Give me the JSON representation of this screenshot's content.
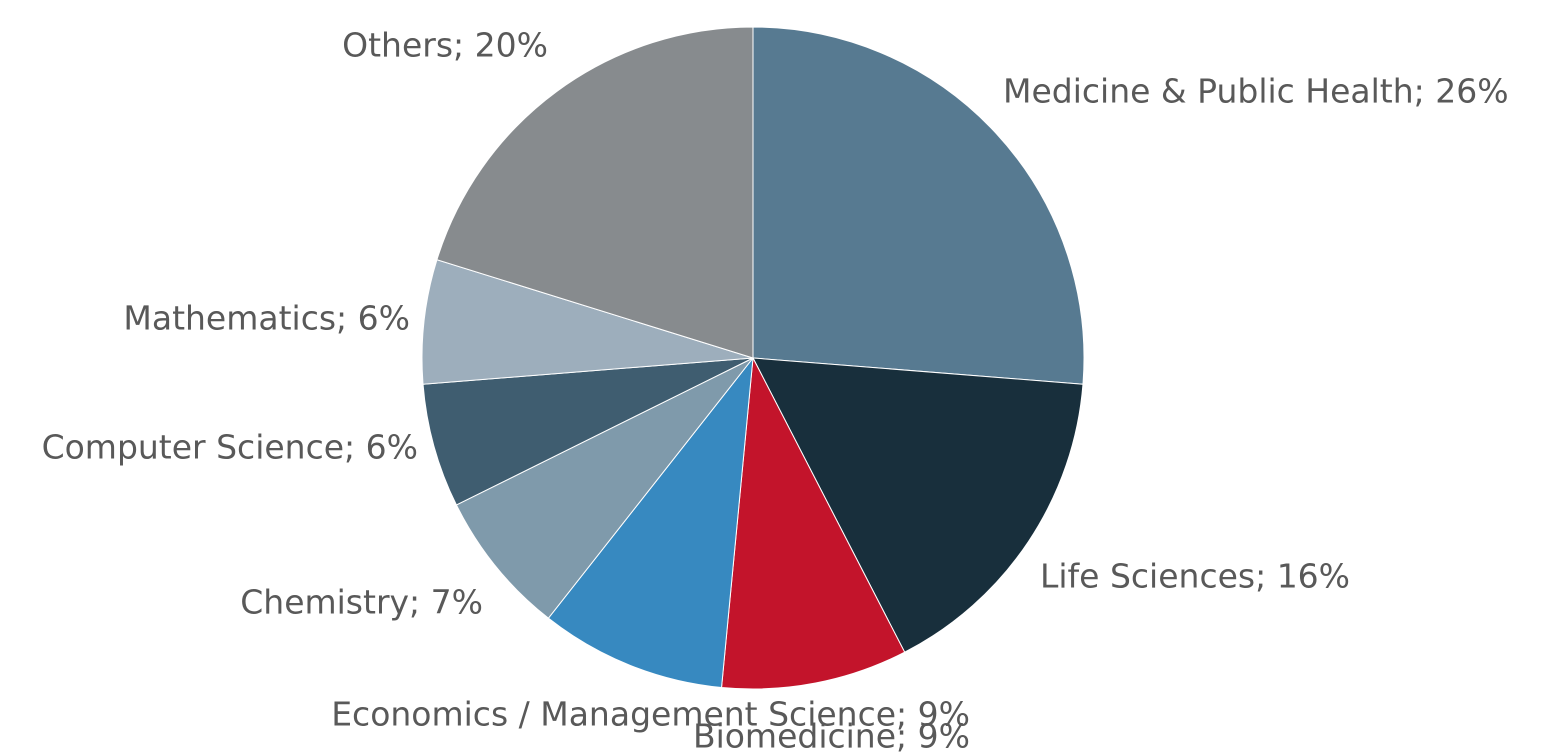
{
  "chart_data": {
    "type": "pie",
    "values": [
      26,
      16,
      9,
      9,
      7,
      6,
      6,
      20
    ],
    "value_labels": [
      "Medicine & Public Health; 26%",
      "Life Sciences; 16%",
      "Biomedicine; 9%",
      "Economics / Management Science; 9%",
      "Chemistry; 7%",
      "Computer Science; 6%",
      "Mathematics; 6%",
      "Others; 20%"
    ],
    "colors": [
      "#577a91",
      "#182f3c",
      "#c3142b",
      "#3789c0",
      "#7f9aab",
      "#3f5d70",
      "#9daebc",
      "#878b8e"
    ]
  }
}
